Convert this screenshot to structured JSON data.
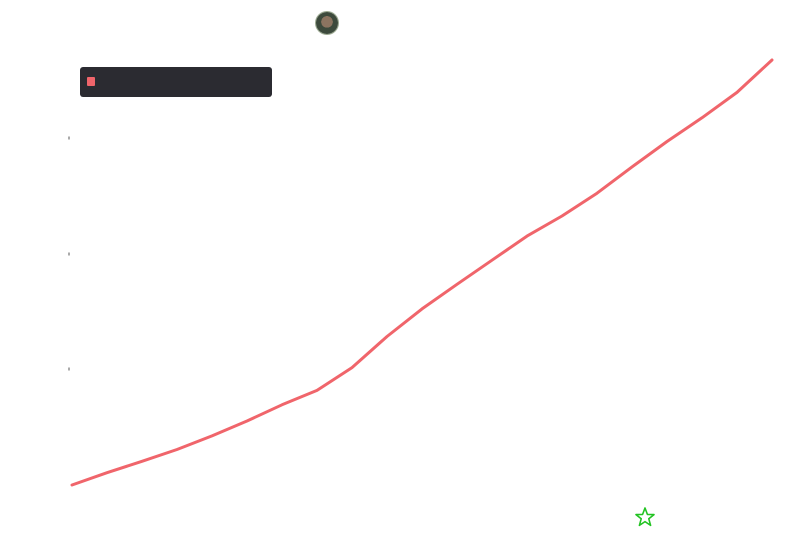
{
  "chart_data": {
    "type": "line",
    "title": "",
    "xlabel": "",
    "ylabel": "",
    "grid": false,
    "legend_position": "top-left",
    "y_tick_labels": [
      "",
      "",
      ""
    ],
    "series": [
      {
        "name": "",
        "color": "#f0656b",
        "x": [
          0,
          5,
          10,
          15,
          20,
          25,
          30,
          35,
          40,
          45,
          50,
          55,
          60,
          65,
          70,
          75,
          80,
          85,
          90,
          95,
          100
        ],
        "y": [
          3,
          5.8,
          8.4,
          11.1,
          14.2,
          17.6,
          21.3,
          24.6,
          29.8,
          36.9,
          43.2,
          48.8,
          54.3,
          59.8,
          64.4,
          69.6,
          75.6,
          81.4,
          86.8,
          92.6,
          100
        ]
      }
    ]
  },
  "legend": {
    "label": "",
    "color": "#f0656b"
  },
  "icons": {
    "avatar": "user-avatar",
    "star": "star-icon",
    "star_color": "#22c322"
  }
}
